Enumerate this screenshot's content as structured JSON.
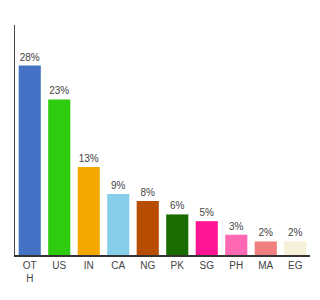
{
  "chart_data": {
    "type": "bar",
    "categories": [
      "OT\nH",
      "US",
      "IN",
      "CA",
      "NG",
      "PK",
      "SG",
      "PH",
      "MA",
      "EG"
    ],
    "values": [
      28,
      23,
      13,
      9,
      8,
      6,
      5,
      3,
      2,
      2
    ],
    "value_labels": [
      "28%",
      "23%",
      "13%",
      "9%",
      "8%",
      "6%",
      "5%",
      "3%",
      "2%",
      "2%"
    ],
    "data_labels": true,
    "colors": [
      "#4472c4",
      "#2ecc0f",
      "#f5a800",
      "#87ceeb",
      "#b84c00",
      "#1a6b00",
      "#ff1493",
      "#ff69b4",
      "#f08080",
      "#f5f0d8"
    ],
    "ylim": [
      0,
      34
    ],
    "tick_labels": "x",
    "grid": false
  }
}
